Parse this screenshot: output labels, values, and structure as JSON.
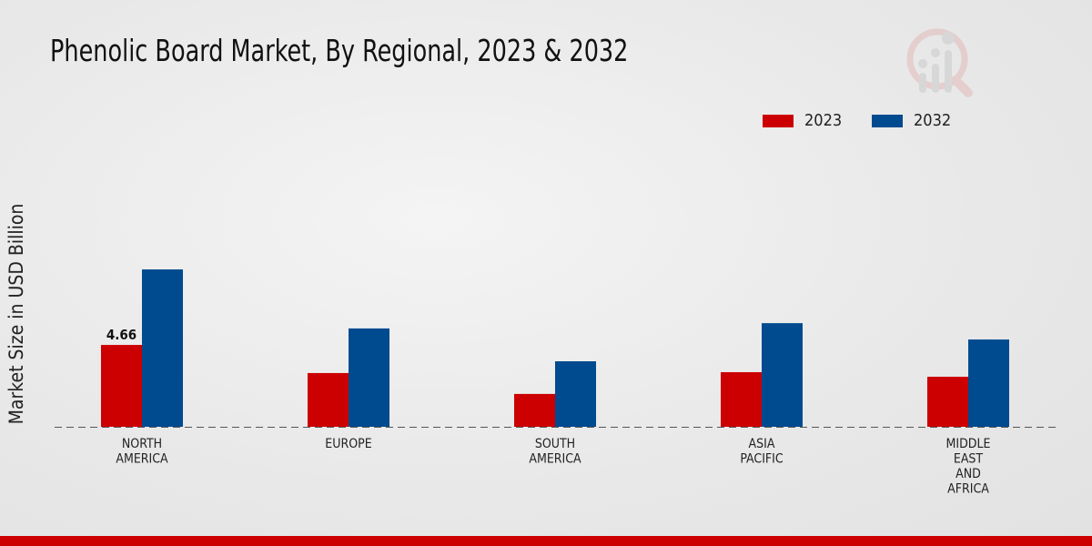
{
  "chart_data": {
    "type": "bar",
    "title": "Phenolic Board Market, By Regional, 2023 & 2032",
    "xlabel": "",
    "ylabel": "Market Size in USD Billion",
    "categories": [
      [
        "NORTH",
        "AMERICA"
      ],
      [
        "EUROPE"
      ],
      [
        "SOUTH",
        "AMERICA"
      ],
      [
        "ASIA",
        "PACIFIC"
      ],
      [
        "MIDDLE",
        "EAST",
        "AND",
        "AFRICA"
      ]
    ],
    "series": [
      {
        "name": "2023",
        "color": "#cc0000",
        "values": [
          4.66,
          3.06,
          1.87,
          3.11,
          2.85
        ]
      },
      {
        "name": "2032",
        "color": "#004a8f",
        "values": [
          8.96,
          5.6,
          3.73,
          5.9,
          4.97
        ]
      }
    ],
    "data_labels": [
      {
        "series": 0,
        "index": 0,
        "text": "4.66"
      }
    ],
    "ylim": [
      0,
      10
    ],
    "grid": false,
    "legend_position": "top-right"
  }
}
